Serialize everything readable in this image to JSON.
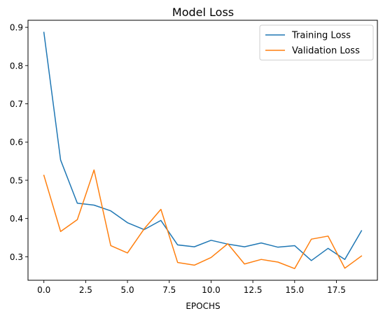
{
  "chart_data": {
    "type": "line",
    "title": "Model Loss",
    "xlabel": "EPOCHS",
    "ylabel": "",
    "xlim": [
      -0.95,
      19.95
    ],
    "ylim": [
      0.2385,
      0.9185
    ],
    "xticks": [
      0.0,
      2.5,
      5.0,
      7.5,
      10.0,
      12.5,
      15.0,
      17.5
    ],
    "xtick_labels": [
      "0.0",
      "2.5",
      "5.0",
      "7.5",
      "10.0",
      "12.5",
      "15.0",
      "17.5"
    ],
    "yticks": [
      0.3,
      0.4,
      0.5,
      0.6,
      0.7,
      0.8,
      0.9
    ],
    "ytick_labels": [
      "0.3",
      "0.4",
      "0.5",
      "0.6",
      "0.7",
      "0.8",
      "0.9"
    ],
    "grid": false,
    "legend_position": "top-right",
    "x": [
      0,
      1,
      2,
      3,
      4,
      5,
      6,
      7,
      8,
      9,
      10,
      11,
      12,
      13,
      14,
      15,
      16,
      17,
      18,
      19
    ],
    "series": [
      {
        "name": "Training Loss",
        "color": "#1f77b4",
        "values": [
          0.887,
          0.553,
          0.44,
          0.435,
          0.42,
          0.389,
          0.371,
          0.395,
          0.331,
          0.326,
          0.343,
          0.333,
          0.326,
          0.336,
          0.325,
          0.329,
          0.29,
          0.322,
          0.293,
          0.368
        ]
      },
      {
        "name": "Validation Loss",
        "color": "#ff7f0e",
        "values": [
          0.513,
          0.366,
          0.397,
          0.527,
          0.329,
          0.31,
          0.373,
          0.424,
          0.285,
          0.278,
          0.298,
          0.334,
          0.281,
          0.293,
          0.286,
          0.269,
          0.346,
          0.354,
          0.27,
          0.302
        ]
      }
    ]
  }
}
